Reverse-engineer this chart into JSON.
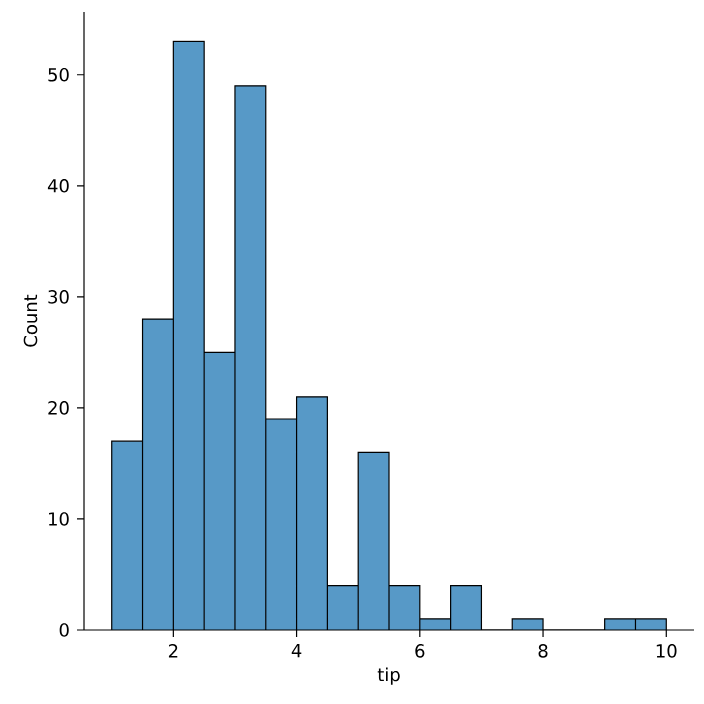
{
  "chart_data": {
    "type": "histogram",
    "xlabel": "tip",
    "ylabel": "Count",
    "bins": [
      1,
      1.5,
      2,
      2.5,
      3,
      3.5,
      4,
      4.5,
      5,
      5.5,
      6,
      6.5,
      7,
      7.5,
      8,
      8.5,
      9,
      9.5,
      10
    ],
    "values": [
      17,
      28,
      53,
      25,
      49,
      19,
      21,
      4,
      16,
      4,
      1,
      4,
      0,
      1,
      0,
      0,
      1,
      1
    ],
    "color": "#5799c7",
    "xlim": [
      0.55,
      10.45
    ],
    "ylim": [
      0,
      55.65
    ],
    "xticks": [
      2,
      4,
      6,
      8,
      10
    ],
    "yticks": [
      0,
      10,
      20,
      30,
      40,
      50
    ]
  }
}
